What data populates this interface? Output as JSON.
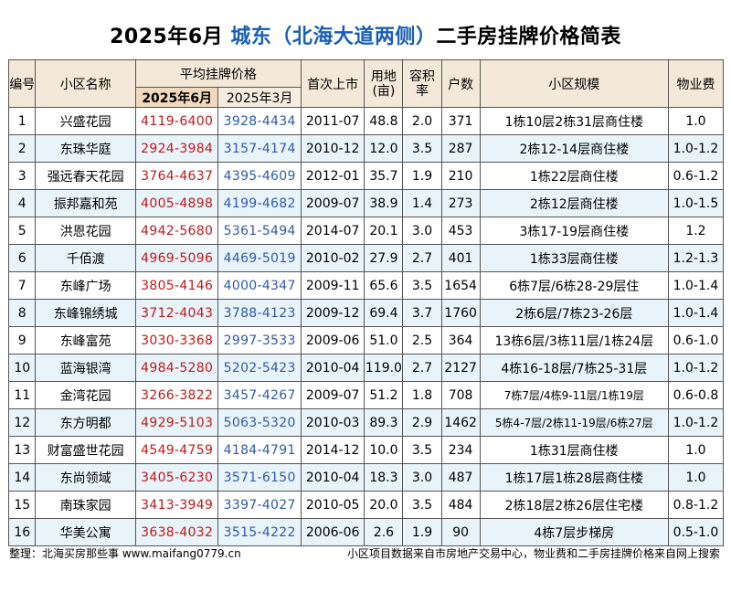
{
  "title": {
    "date": "2025年6月",
    "district": "城东（北海大道两侧）",
    "suffix": "二手房挂牌价格简表"
  },
  "headers": {
    "no": "编号",
    "name": "小区名称",
    "avg_price": "平均挂牌价格",
    "jun": "2025年6月",
    "mar": "2025年3月",
    "listed": "首次上市",
    "land": "用地\n(亩)",
    "far": "容积\n率",
    "units": "户数",
    "scale": "小区规模",
    "fee": "物业费"
  },
  "rows": [
    {
      "no": "1",
      "name": "兴盛花园",
      "jun": "4119-6400",
      "mar": "3928-4434",
      "listed": "2011-07",
      "land": "48.8",
      "far": "2.0",
      "units": "371",
      "scale": "1栋10层2栋31层商住楼",
      "fee": "1.0"
    },
    {
      "no": "2",
      "name": "东珠华庭",
      "jun": "2924-3984",
      "mar": "3157-4174",
      "listed": "2010-12",
      "land": "12.0",
      "far": "3.5",
      "units": "287",
      "scale": "2栋12-14层商住楼",
      "fee": "1.0-1.2"
    },
    {
      "no": "3",
      "name": "强远春天花园",
      "jun": "3764-4637",
      "mar": "4395-4609",
      "listed": "2012-01",
      "land": "35.7",
      "far": "1.9",
      "units": "210",
      "scale": "1栋22层商住楼",
      "fee": "0.6-1.2"
    },
    {
      "no": "4",
      "name": "振邦嘉和苑",
      "jun": "4005-4898",
      "mar": "4199-4682",
      "listed": "2009-07",
      "land": "38.9",
      "far": "1.4",
      "units": "273",
      "scale": "2栋12层商住楼",
      "fee": "1.0-1.5"
    },
    {
      "no": "5",
      "name": "洪恩花园",
      "jun": "4942-5680",
      "mar": "5361-5494",
      "listed": "2014-07",
      "land": "20.1",
      "far": "3.0",
      "units": "453",
      "scale": "3栋17-19层商住楼",
      "fee": "1.2"
    },
    {
      "no": "6",
      "name": "千佰渡",
      "jun": "4969-5096",
      "mar": "4469-5019",
      "listed": "2010-02",
      "land": "27.9",
      "far": "2.7",
      "units": "401",
      "scale": "1栋33层商住楼",
      "fee": "1.2-1.3"
    },
    {
      "no": "7",
      "name": "东峰广场",
      "jun": "3805-4146",
      "mar": "4000-4347",
      "listed": "2009-11",
      "land": "65.6",
      "far": "3.5",
      "units": "1654",
      "scale": "6栋7层/6栋28-29层住",
      "fee": "1.0-1.4"
    },
    {
      "no": "8",
      "name": "东峰锦绣城",
      "jun": "3712-4043",
      "mar": "3788-4123",
      "listed": "2009-12",
      "land": "69.4",
      "far": "3.7",
      "units": "1760",
      "scale": "2栋6层/7栋23-26层",
      "fee": "1.0-1.4"
    },
    {
      "no": "9",
      "name": "东峰富苑",
      "jun": "3030-3368",
      "mar": "2997-3533",
      "listed": "2009-06",
      "land": "51.0",
      "far": "2.5",
      "units": "364",
      "scale": "13栋6层/3栋11层/1栋24层",
      "fee": "0.6-1.0"
    },
    {
      "no": "10",
      "name": "蓝海银湾",
      "jun": "4984-5280",
      "mar": "5202-5423",
      "listed": "2010-04",
      "land": "119.0",
      "far": "2.7",
      "units": "2127",
      "scale": "4栋16-18层/7栋25-31层",
      "fee": "1.0-1.2"
    },
    {
      "no": "11",
      "name": "金湾花园",
      "jun": "3266-3822",
      "mar": "3457-4267",
      "listed": "2009-07",
      "land": "51.2",
      "far": "1.8",
      "units": "708",
      "scale": "7栋7层/4栋9-11层/1栋19层",
      "fee": "0.6-0.8"
    },
    {
      "no": "12",
      "name": "东方明都",
      "jun": "4929-5103",
      "mar": "5063-5320",
      "listed": "2010-03",
      "land": "89.3",
      "far": "2.9",
      "units": "1462",
      "scale": "5栋4-7层/2栋11-19层/6栋27层",
      "fee": "1.0-1.2"
    },
    {
      "no": "13",
      "name": "财富盛世花园",
      "jun": "4549-4759",
      "mar": "4184-4791",
      "listed": "2014-12",
      "land": "10.0",
      "far": "3.5",
      "units": "234",
      "scale": "1栋31层商住楼",
      "fee": "1.0"
    },
    {
      "no": "14",
      "name": "东尚领域",
      "jun": "3405-6230",
      "mar": "3571-6150",
      "listed": "2010-04",
      "land": "18.3",
      "far": "3.0",
      "units": "487",
      "scale": "1栋17层1栋28层商住楼",
      "fee": "1.0"
    },
    {
      "no": "15",
      "name": "南珠家园",
      "jun": "3413-3949",
      "mar": "3397-4027",
      "listed": "2010-05",
      "land": "20.0",
      "far": "3.5",
      "units": "484",
      "scale": "2栋18层2栋26层住宅楼",
      "fee": "0.8-1.2"
    },
    {
      "no": "16",
      "name": "华美公寓",
      "jun": "3638-4032",
      "mar": "3515-4222",
      "listed": "2006-06",
      "land": "2.6",
      "far": "1.9",
      "units": "90",
      "scale": "4栋7层步梯房",
      "fee": "0.5-1.0"
    }
  ],
  "footer": {
    "left": "整理：北海买房那些事 www.maifang0779.cn",
    "right": "小区项目数据来自市房地产交易中心，物业费和二手房挂牌价格来自网上搜索"
  }
}
